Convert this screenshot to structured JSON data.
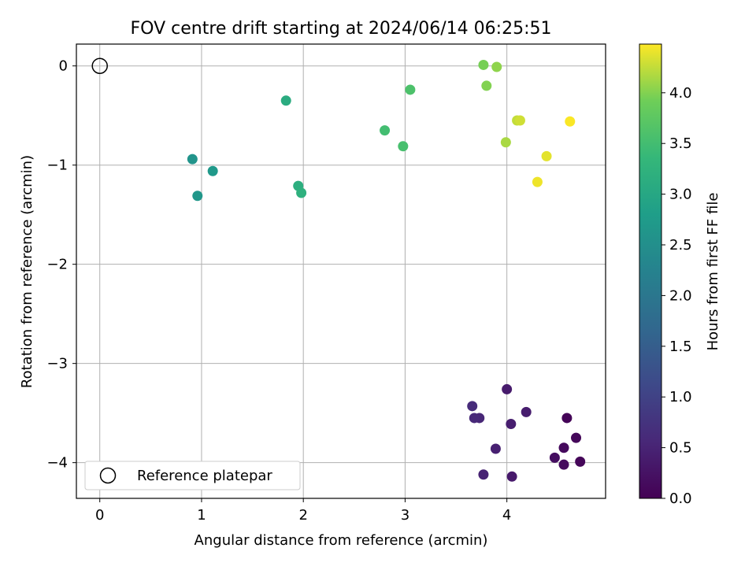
{
  "chart_data": {
    "type": "scatter",
    "title": "FOV centre drift starting at 2024/06/14 06:25:51",
    "xlabel": "Angular distance from reference (arcmin)",
    "ylabel": "Rotation from reference (arcmin)",
    "xlim": [
      -0.23,
      4.97
    ],
    "ylim": [
      -4.36,
      0.22
    ],
    "x_ticks": [
      0,
      1,
      2,
      3,
      4
    ],
    "y_ticks": [
      0,
      -1,
      -2,
      -3,
      -4
    ],
    "x_tick_labels": [
      "0",
      "1",
      "2",
      "3",
      "4"
    ],
    "y_tick_labels": [
      "0",
      "−1",
      "−2",
      "−3",
      "−4"
    ],
    "grid": true,
    "colormap": "viridis",
    "colorbar": {
      "label": "Hours from first FF file",
      "min": 0.0,
      "max": 4.48,
      "ticks": [
        0.0,
        0.5,
        1.0,
        1.5,
        2.0,
        2.5,
        3.0,
        3.5,
        4.0
      ],
      "tick_labels": [
        "0.0",
        "0.5",
        "1.0",
        "1.5",
        "2.0",
        "2.5",
        "3.0",
        "3.5",
        "4.0"
      ]
    },
    "legend": {
      "placement": "lower-left",
      "entries": [
        {
          "label": "Reference platepar",
          "marker": "open-circle"
        }
      ]
    },
    "reference_point": {
      "x": 0,
      "y": 0
    },
    "points": [
      {
        "x": 4.59,
        "y": -3.55,
        "hours": 0.05
      },
      {
        "x": 4.72,
        "y": -3.99,
        "hours": 0.07
      },
      {
        "x": 4.68,
        "y": -3.75,
        "hours": 0.1
      },
      {
        "x": 4.56,
        "y": -3.85,
        "hours": 0.12
      },
      {
        "x": 4.56,
        "y": -4.02,
        "hours": 0.15
      },
      {
        "x": 4.47,
        "y": -3.95,
        "hours": 0.18
      },
      {
        "x": 4.05,
        "y": -4.14,
        "hours": 0.35
      },
      {
        "x": 4.0,
        "y": -3.26,
        "hours": 0.38
      },
      {
        "x": 4.19,
        "y": -3.49,
        "hours": 0.4
      },
      {
        "x": 4.04,
        "y": -3.61,
        "hours": 0.42
      },
      {
        "x": 3.89,
        "y": -3.86,
        "hours": 0.45
      },
      {
        "x": 3.77,
        "y": -4.12,
        "hours": 0.48
      },
      {
        "x": 3.73,
        "y": -3.55,
        "hours": 0.55
      },
      {
        "x": 3.68,
        "y": -3.55,
        "hours": 0.58
      },
      {
        "x": 3.66,
        "y": -3.43,
        "hours": 0.62
      },
      {
        "x": 0.91,
        "y": -0.94,
        "hours": 2.6
      },
      {
        "x": 0.96,
        "y": -1.31,
        "hours": 2.65
      },
      {
        "x": 1.11,
        "y": -1.06,
        "hours": 2.7
      },
      {
        "x": 1.83,
        "y": -0.35,
        "hours": 3.1
      },
      {
        "x": 1.95,
        "y": -1.21,
        "hours": 3.15
      },
      {
        "x": 1.98,
        "y": -1.28,
        "hours": 3.2
      },
      {
        "x": 2.8,
        "y": -0.65,
        "hours": 3.5
      },
      {
        "x": 2.98,
        "y": -0.81,
        "hours": 3.55
      },
      {
        "x": 3.05,
        "y": -0.24,
        "hours": 3.6
      },
      {
        "x": 3.77,
        "y": 0.01,
        "hours": 3.95
      },
      {
        "x": 3.8,
        "y": -0.2,
        "hours": 4.0
      },
      {
        "x": 3.9,
        "y": -0.01,
        "hours": 4.05
      },
      {
        "x": 3.99,
        "y": -0.77,
        "hours": 4.15
      },
      {
        "x": 4.1,
        "y": -0.55,
        "hours": 4.25
      },
      {
        "x": 4.13,
        "y": -0.55,
        "hours": 4.3
      },
      {
        "x": 4.39,
        "y": -0.91,
        "hours": 4.38
      },
      {
        "x": 4.3,
        "y": -1.17,
        "hours": 4.42
      },
      {
        "x": 4.62,
        "y": -0.56,
        "hours": 4.47
      }
    ]
  }
}
